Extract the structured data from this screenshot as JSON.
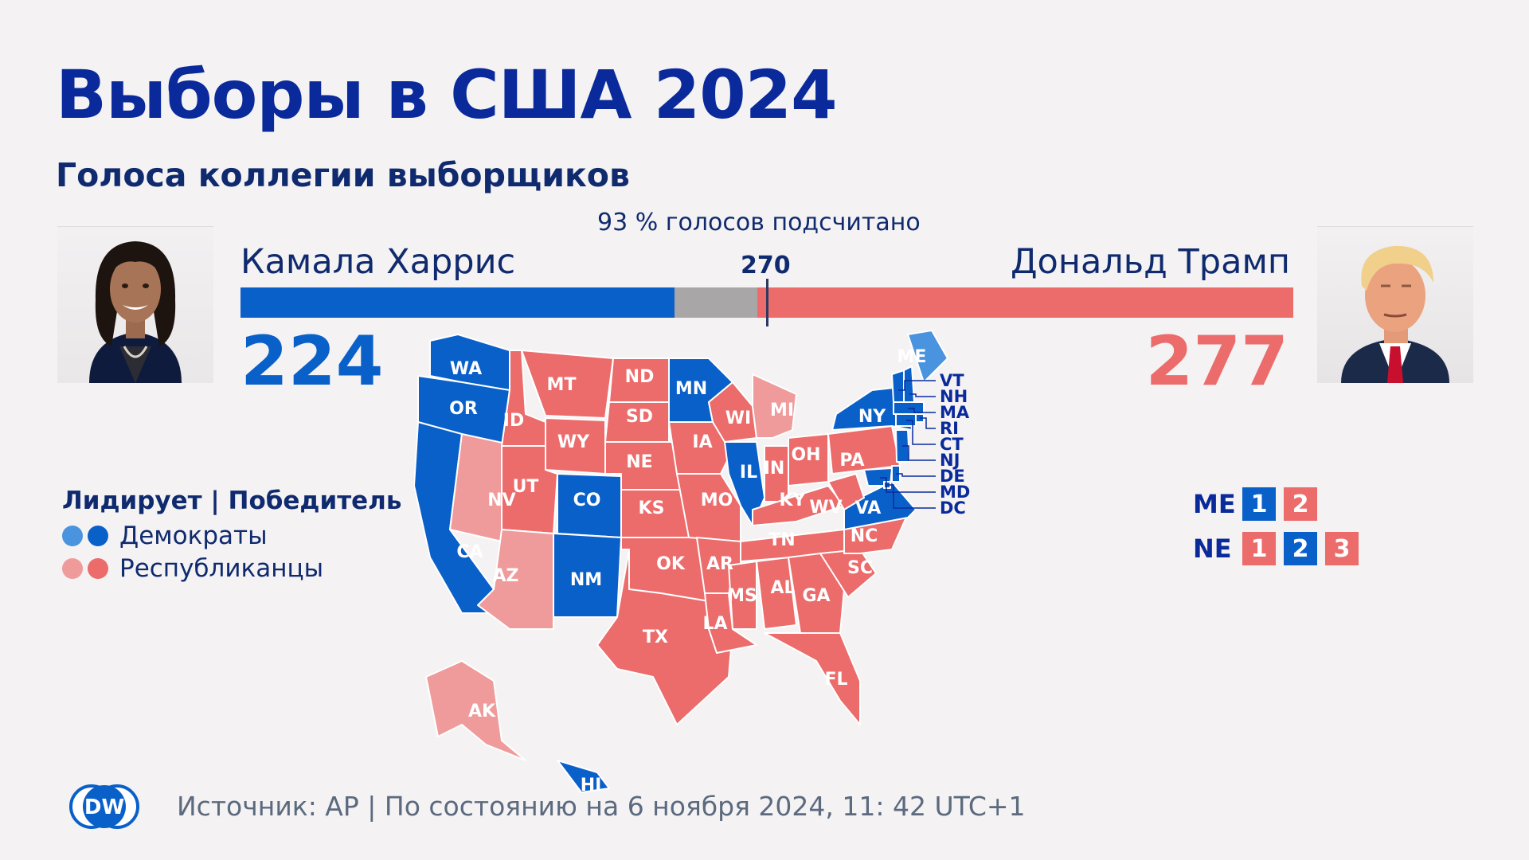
{
  "header": {
    "title": "Выборы в США 2024",
    "subtitle": "Голоса коллегии выборщиков",
    "counted": "93 % голосов подсчитано"
  },
  "race": {
    "threshold_label": "270",
    "threshold": 270,
    "total": 538,
    "dem": {
      "name": "Камала Харрис",
      "votes_label": "224",
      "votes": 224,
      "color": "#0a60c9"
    },
    "rep": {
      "name": "Дональд Трамп",
      "votes_label": "277",
      "votes": 277,
      "color": "#ec6b6b"
    },
    "undecided_color": "#a8a6a7"
  },
  "legend": {
    "title": "Лидирует | Победитель",
    "dem_label": "Демократы",
    "rep_label": "Республиканцы",
    "colors": {
      "dem_leading": "#4a93df",
      "dem_winner": "#0a60c9",
      "rep_leading": "#f09b9b",
      "rep_winner": "#ec6b6b"
    }
  },
  "split_states": {
    "me": {
      "label": "ME",
      "districts": [
        {
          "n": "1",
          "party": "dem"
        },
        {
          "n": "2",
          "party": "rep"
        }
      ]
    },
    "ne": {
      "label": "NE",
      "districts": [
        {
          "n": "1",
          "party": "rep"
        },
        {
          "n": "2",
          "party": "dem"
        },
        {
          "n": "3",
          "party": "rep"
        }
      ]
    }
  },
  "states": {
    "WA": "dem_winner",
    "OR": "dem_winner",
    "CA": "dem_winner",
    "NV": "rep_leading",
    "ID": "rep_winner",
    "MT": "rep_winner",
    "WY": "rep_winner",
    "UT": "rep_winner",
    "AZ": "rep_leading",
    "CO": "dem_winner",
    "NM": "dem_winner",
    "ND": "rep_winner",
    "SD": "rep_winner",
    "NE": "rep_winner",
    "KS": "rep_winner",
    "OK": "rep_winner",
    "TX": "rep_winner",
    "MN": "dem_winner",
    "IA": "rep_winner",
    "MO": "rep_winner",
    "AR": "rep_winner",
    "LA": "rep_winner",
    "WI": "rep_winner",
    "IL": "dem_winner",
    "MI": "rep_leading",
    "IN": "rep_winner",
    "OH": "rep_winner",
    "KY": "rep_winner",
    "TN": "rep_winner",
    "MS": "rep_winner",
    "AL": "rep_winner",
    "GA": "rep_winner",
    "FL": "rep_winner",
    "SC": "rep_winner",
    "NC": "rep_winner",
    "VA": "dem_winner",
    "WV": "rep_winner",
    "PA": "rep_winner",
    "NY": "dem_winner",
    "ME": "dem_leading",
    "VT": "dem_winner",
    "NH": "dem_winner",
    "MA": "dem_winner",
    "RI": "dem_winner",
    "CT": "dem_winner",
    "NJ": "dem_winner",
    "DE": "dem_winner",
    "MD": "dem_winner",
    "DC": "dem_winner",
    "AK": "rep_leading",
    "HI": "dem_winner"
  },
  "footer": {
    "logo_text": "DW",
    "source": "Источник: AP | По состоянию на 6 ноября 2024, 11: 42 UTC+1"
  }
}
